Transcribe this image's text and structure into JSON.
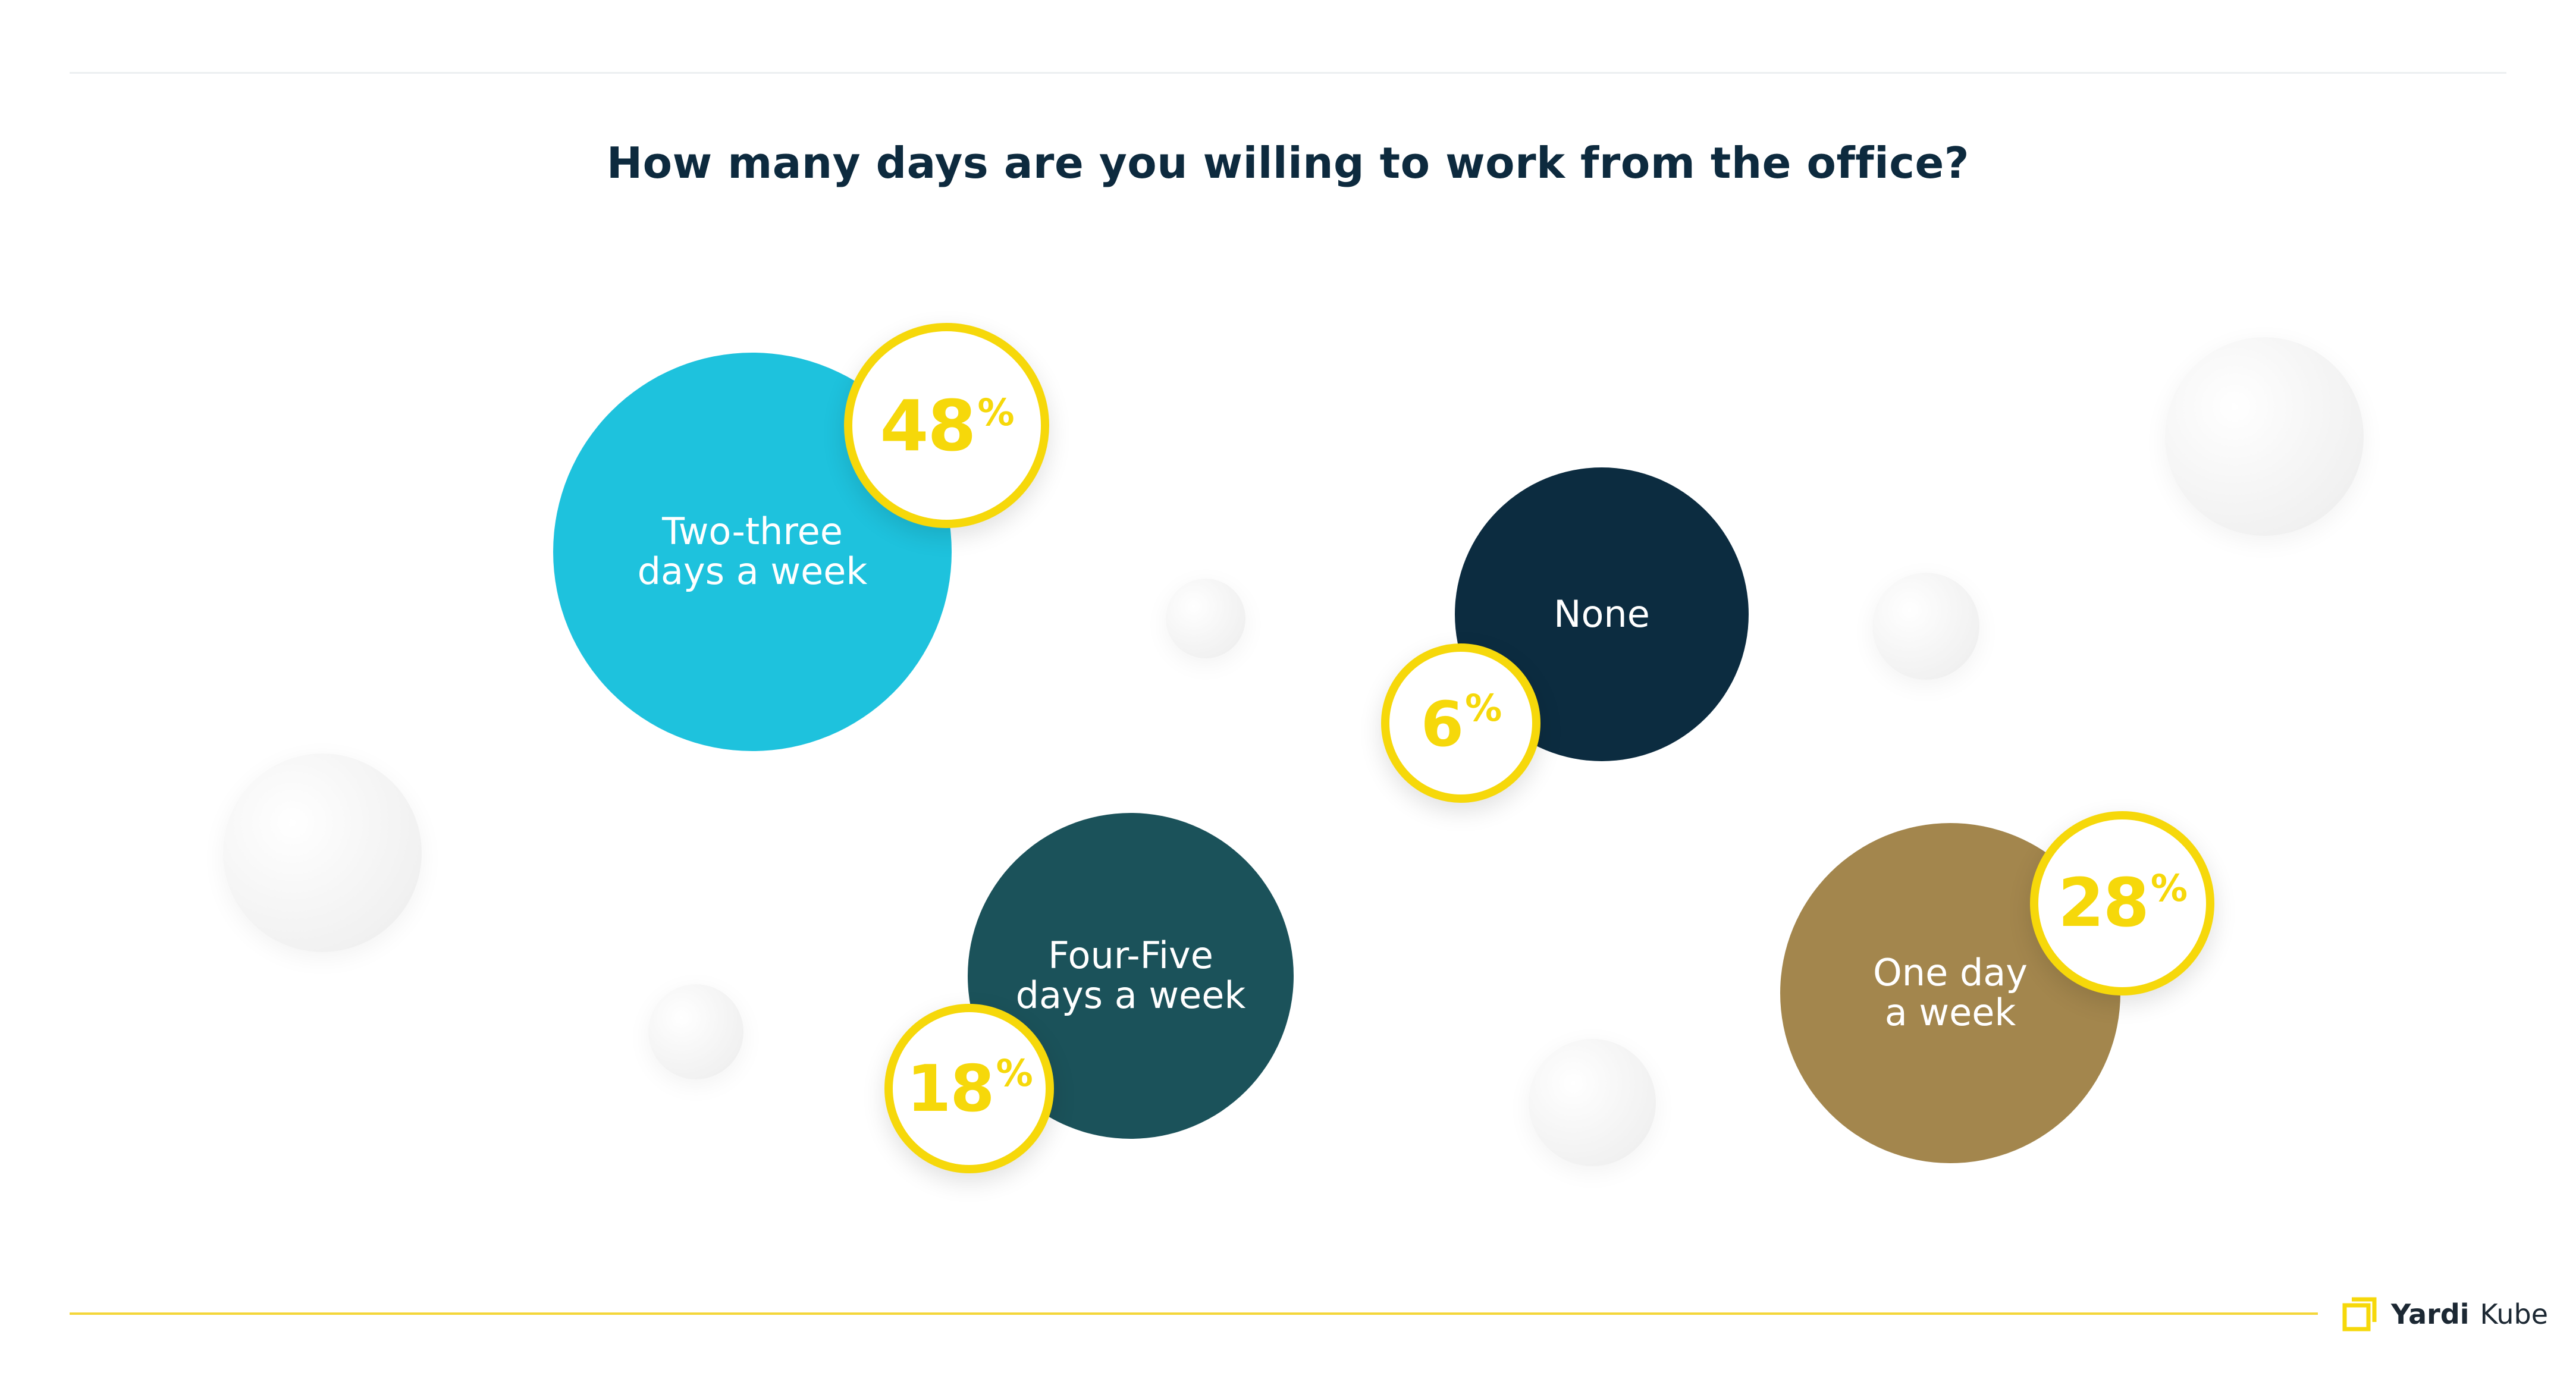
{
  "chart_data": {
    "type": "bubble",
    "title": "How many days are you willing to work from the office?",
    "series": [
      {
        "category": "Two-three\ndays a week",
        "value": 48,
        "color": "#1ec2dd"
      },
      {
        "category": "None",
        "value": 6,
        "color": "#0c2c40"
      },
      {
        "category": "Four-Five\ndays a week",
        "value": 18,
        "color": "#1b525a"
      },
      {
        "category": "One day\na week",
        "value": 28,
        "color": "#a3864d"
      }
    ],
    "value_unit": "%",
    "accent_color": "#f6d80a"
  },
  "brand": {
    "name": "Yardi",
    "product": "Kube",
    "icon": "yardi-kube-logo-icon"
  }
}
